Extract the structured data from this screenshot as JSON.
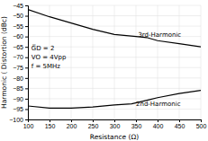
{
  "chart_data": {
    "type": "line",
    "title": "",
    "xlabel": "Resistance (Ω)",
    "ylabel": "Harmonic ( Distortion (dBc)",
    "xlim": [
      100,
      500
    ],
    "ylim": [
      -100,
      -45
    ],
    "xticks": [
      100,
      150,
      200,
      250,
      300,
      350,
      400,
      450,
      500
    ],
    "yticks": [
      -100,
      -95,
      -90,
      -85,
      -80,
      -75,
      -70,
      -65,
      -60,
      -55,
      -50,
      -45
    ],
    "grid": true,
    "series": [
      {
        "color": "#000000",
        "x": [
          100,
          150,
          200,
          250,
          300,
          350,
          375,
          400,
          450,
          500
        ],
        "values": [
          -47.0,
          -50.5,
          -53.5,
          -56.5,
          -59.0,
          -60.0,
          -60.5,
          -62.0,
          -63.5,
          -65.0
        ]
      },
      {
        "color": "#000000",
        "x": [
          100,
          150,
          200,
          250,
          300,
          340,
          360,
          380,
          400,
          450,
          500
        ],
        "values": [
          -93.5,
          -94.5,
          -94.5,
          -94.0,
          -93.0,
          -92.5,
          -91.5,
          -90.5,
          -89.5,
          -87.5,
          -86.0
        ]
      }
    ],
    "annotations": [
      {
        "text": "3rd-Harmonic",
        "x": 355,
        "y": -59.5
      },
      {
        "text": "2nd-Harmonic",
        "x": 350,
        "y": -92.5
      },
      {
        "text": [
          "G̅D = 2",
          "VO = 4Vpp",
          "f = 5MHz"
        ],
        "x": 108,
        "y": -64
      }
    ]
  }
}
